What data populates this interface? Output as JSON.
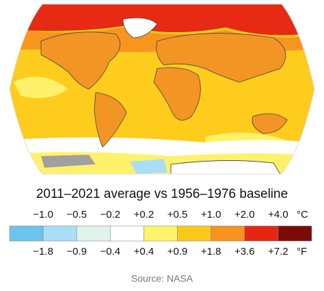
{
  "title": "2011–2021 average vs 1956–1976 baseline",
  "legend": {
    "colors": [
      "#6cc4ee",
      "#a9dff6",
      "#dff3ea",
      "#ffffff",
      "#fff56a",
      "#fdc919",
      "#f7921e",
      "#e52613",
      "#7a0b06"
    ],
    "celsius": {
      "labels": [
        "−1.0",
        "−0.5",
        "−0.2",
        "+0.2",
        "+0.5",
        "+1.0",
        "+2.0",
        "+4.0"
      ],
      "unit": "°C"
    },
    "fahrenheit": {
      "labels": [
        "−1.8",
        "−0.9",
        "−0.4",
        "+0.4",
        "+0.9",
        "+1.8",
        "+3.6",
        "+7.2"
      ],
      "unit": "°F"
    }
  },
  "source": "Source: NASA"
}
